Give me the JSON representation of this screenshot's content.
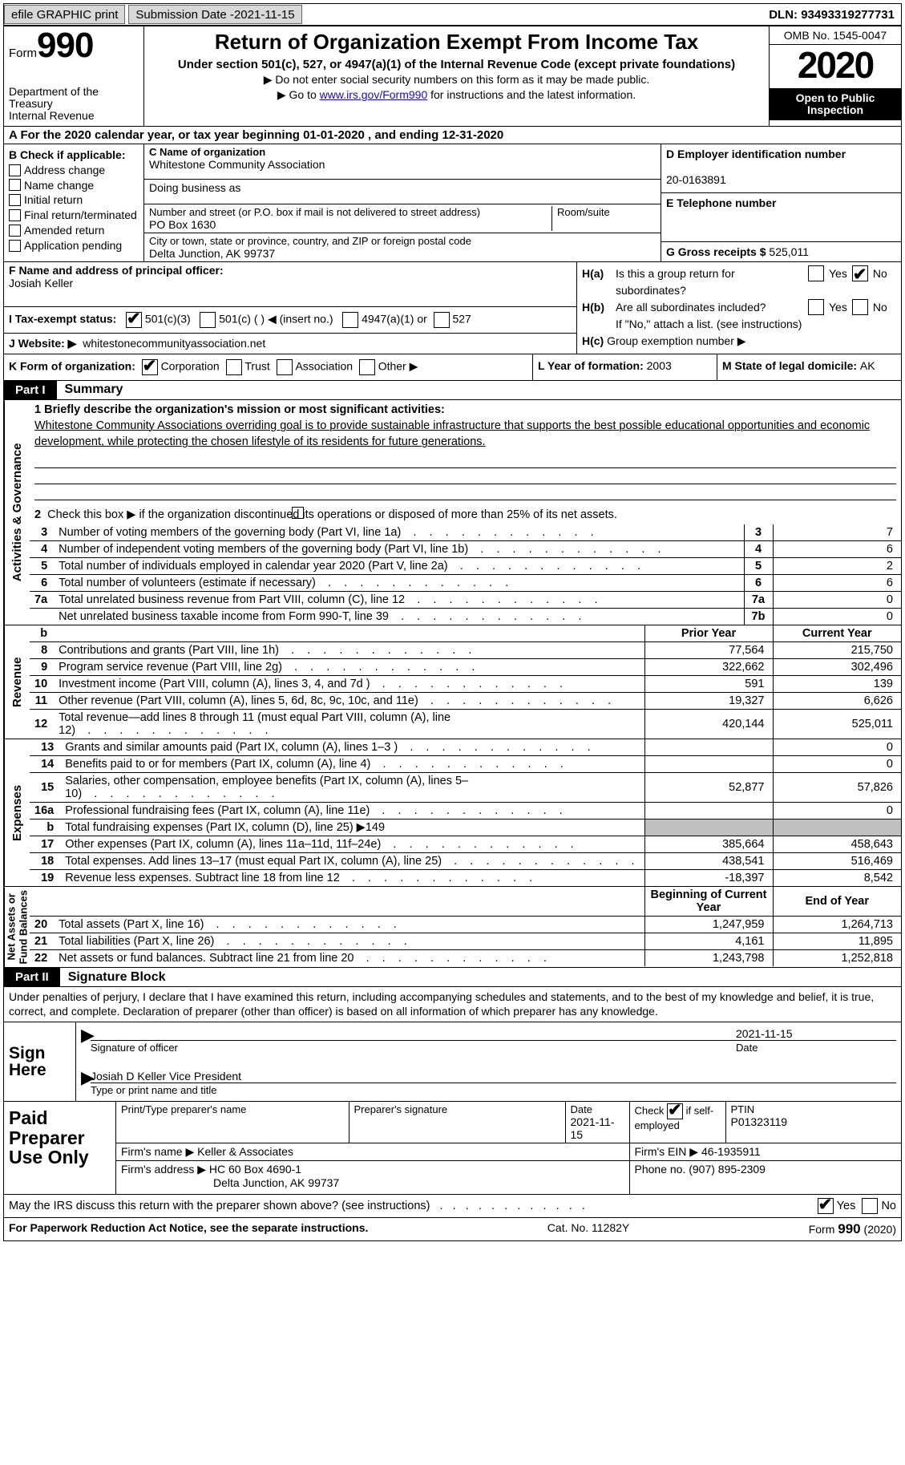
{
  "topbar": {
    "efile": "efile GRAPHIC print",
    "submission_prefix": "Submission Date - ",
    "submission_date": "2021-11-15",
    "dln_prefix": "DLN: ",
    "dln": "93493319277731"
  },
  "header": {
    "form_label": "Form",
    "form_num": "990",
    "dept": "Department of the Treasury\nInternal Revenue",
    "title": "Return of Organization Exempt From Income Tax",
    "sub": "Under section 501(c), 527, or 4947(a)(1) of the Internal Revenue Code (except private foundations)",
    "line1_prefix": "▶ Do not enter social security numbers on this form as it may be made public.",
    "line2_prefix": "▶ Go to ",
    "line2_link": "www.irs.gov/Form990",
    "line2_suffix": " for instructions and the latest information.",
    "omb": "OMB No. 1545-0047",
    "year": "2020",
    "open": "Open to Public Inspection"
  },
  "lineA": {
    "prefix": "A For the 2020 calendar year, or tax year beginning ",
    "begin": "01-01-2020",
    "mid": "   , and ending ",
    "end": "12-31-2020"
  },
  "boxB": {
    "label": "B Check if applicable:",
    "opts": [
      "Address change",
      "Name change",
      "Initial return",
      "Final return/terminated",
      "Amended return",
      "Application pending"
    ]
  },
  "boxC": {
    "label": "C Name of organization",
    "org_name": "Whitestone Community Association",
    "dba": "Doing business as",
    "addr_label": "Number and street (or P.O. box if mail is not delivered to street address)",
    "suite_label": "Room/suite",
    "addr": "PO Box 1630",
    "city_label": "City or town, state or province, country, and ZIP or foreign postal code",
    "city": "Delta Junction, AK  99737"
  },
  "boxD": {
    "label": "D Employer identification number",
    "ein": "20-0163891"
  },
  "boxE": {
    "label": "E Telephone number"
  },
  "boxG": {
    "prefix": "G Gross receipts $ ",
    "val": "525,011"
  },
  "boxF": {
    "label": "F  Name and address of principal officer:",
    "name": "Josiah Keller"
  },
  "boxH": {
    "a_q": "Is this a group return for subordinates?",
    "b_q": "Are all subordinates included?",
    "a_pre": "H(a)",
    "b_pre": "H(b)",
    "c_pre": "H(c)",
    "note": "If \"No,\" attach a list. (see instructions)",
    "c_label": "Group exemption number ▶",
    "yes": "Yes",
    "no": "No",
    "a_checked_no": true
  },
  "boxI": {
    "lbl": "I   Tax-exempt status:",
    "o1": "501(c)(3)",
    "o2": "501(c) (   ) ◀ (insert no.)",
    "o3": "4947(a)(1) or",
    "o4": "527",
    "checked": "501(c)(3)"
  },
  "boxJ": {
    "lbl": "J   Website: ▶",
    "val": "whitestonecommunityassociation.net"
  },
  "boxK": {
    "lbl": "K Form of organization:",
    "opts": [
      "Corporation",
      "Trust",
      "Association",
      "Other ▶"
    ],
    "checked": "Corporation"
  },
  "boxL": {
    "pre": "L Year of formation: ",
    "val": "2003"
  },
  "boxM": {
    "pre": "M State of legal domicile: ",
    "val": "AK"
  },
  "parts": {
    "p1": "Part I",
    "p1t": "Summary",
    "p2": "Part II",
    "p2t": "Signature Block"
  },
  "summary": {
    "q1": "1  Briefly describe the organization's mission or most significant activities:",
    "mission": "Whitestone Community Associations overriding goal is to provide sustainable infrastructure that supports the best possible educational opportunities and economic development, while protecting the chosen lifestyle of its residents for future generations.",
    "q2": "Check this box ▶        if the organization discontinued its operations or disposed of more than 25% of its net assets.",
    "rows_numbox": [
      {
        "n": "3",
        "desc": "Number of voting members of the governing body (Part VI, line 1a)",
        "box": "3",
        "val": "7"
      },
      {
        "n": "4",
        "desc": "Number of independent voting members of the governing body (Part VI, line 1b)",
        "box": "4",
        "val": "6"
      },
      {
        "n": "5",
        "desc": "Total number of individuals employed in calendar year 2020 (Part V, line 2a)",
        "box": "5",
        "val": "2"
      },
      {
        "n": "6",
        "desc": "Total number of volunteers (estimate if necessary)",
        "box": "6",
        "val": "6"
      },
      {
        "n": "7a",
        "desc": "Total unrelated business revenue from Part VIII, column (C), line 12",
        "box": "7a",
        "val": "0"
      },
      {
        "n": "",
        "desc": "Net unrelated business taxable income from Form 990-T, line 39",
        "box": "7b",
        "val": "0"
      }
    ],
    "col_prior": "Prior Year",
    "col_current": "Current Year",
    "col_boy": "Beginning of Current Year",
    "col_eoy": "End of Year",
    "revenue": [
      {
        "n": "8",
        "desc": "Contributions and grants (Part VIII, line 1h)",
        "p": "77,564",
        "c": "215,750"
      },
      {
        "n": "9",
        "desc": "Program service revenue (Part VIII, line 2g)",
        "p": "322,662",
        "c": "302,496"
      },
      {
        "n": "10",
        "desc": "Investment income (Part VIII, column (A), lines 3, 4, and 7d )",
        "p": "591",
        "c": "139"
      },
      {
        "n": "11",
        "desc": "Other revenue (Part VIII, column (A), lines 5, 6d, 8c, 9c, 10c, and 11e)",
        "p": "19,327",
        "c": "6,626"
      },
      {
        "n": "12",
        "desc": "Total revenue—add lines 8 through 11 (must equal Part VIII, column (A), line 12)",
        "p": "420,144",
        "c": "525,011"
      }
    ],
    "expenses": [
      {
        "n": "13",
        "desc": "Grants and similar amounts paid (Part IX, column (A), lines 1–3 )",
        "p": "",
        "c": "0",
        "shade_p": false
      },
      {
        "n": "14",
        "desc": "Benefits paid to or for members (Part IX, column (A), line 4)",
        "p": "",
        "c": "0",
        "shade_p": false
      },
      {
        "n": "15",
        "desc": "Salaries, other compensation, employee benefits (Part IX, column (A), lines 5–10)",
        "p": "52,877",
        "c": "57,826",
        "shade_p": false
      },
      {
        "n": "16a",
        "desc": "Professional fundraising fees (Part IX, column (A), line 11e)",
        "p": "",
        "c": "0",
        "shade_p": false
      },
      {
        "n": "b",
        "desc": "Total fundraising expenses (Part IX, column (D), line 25) ▶149",
        "p": "",
        "c": "",
        "shade_p": true,
        "shade_c": true
      },
      {
        "n": "17",
        "desc": "Other expenses (Part IX, column (A), lines 11a–11d, 11f–24e)",
        "p": "385,664",
        "c": "458,643",
        "shade_p": false
      },
      {
        "n": "18",
        "desc": "Total expenses. Add lines 13–17 (must equal Part IX, column (A), line 25)",
        "p": "438,541",
        "c": "516,469",
        "shade_p": false
      },
      {
        "n": "19",
        "desc": "Revenue less expenses. Subtract line 18 from line 12",
        "p": "-18,397",
        "c": "8,542",
        "shade_p": false
      }
    ],
    "netassets": [
      {
        "n": "20",
        "desc": "Total assets (Part X, line 16)",
        "p": "1,247,959",
        "c": "1,264,713"
      },
      {
        "n": "21",
        "desc": "Total liabilities (Part X, line 26)",
        "p": "4,161",
        "c": "11,895"
      },
      {
        "n": "22",
        "desc": "Net assets or fund balances. Subtract line 21 from line 20",
        "p": "1,243,798",
        "c": "1,252,818"
      }
    ],
    "vtabs": {
      "ag": "Activities & Governance",
      "rev": "Revenue",
      "exp": "Expenses",
      "na": "Net Assets or\nFund Balances"
    }
  },
  "sig": {
    "decl": "Under penalties of perjury, I declare that I have examined this return, including accompanying schedules and statements, and to the best of my knowledge and belief, it is true, correct, and complete. Declaration of preparer (other than officer) is based on all information of which preparer has any knowledge.",
    "sign_here": "Sign Here",
    "sig_officer": "Signature of officer",
    "date_lbl": "Date",
    "date_val": "2021-11-15",
    "name_title": "Josiah D Keller  Vice President",
    "type_lbl": "Type or print name and title"
  },
  "prep": {
    "label": "Paid Preparer Use Only",
    "h_name": "Print/Type preparer's name",
    "h_sig": "Preparer's signature",
    "h_date": "Date",
    "h_check": "Check         if self-employed",
    "h_ptin": "PTIN",
    "date": "2021-11-15",
    "ptin": "P01323119",
    "firm_pre": "Firm's name    ▶ ",
    "firm_name": "Keller & Associates",
    "ein_pre": "Firm's EIN ▶ ",
    "ein": "46-1935911",
    "addr_pre": "Firm's address ▶ ",
    "addr1": "HC 60 Box 4690-1",
    "addr2": "Delta Junction, AK  99737",
    "phone_pre": "Phone no. ",
    "phone": "(907) 895-2309",
    "check_self": true
  },
  "may": {
    "q": "May the IRS discuss this return with the preparer shown above? (see instructions)",
    "yes": "Yes",
    "no": "No",
    "checked_yes": true
  },
  "foot": {
    "l": "For Paperwork Reduction Act Notice, see the separate instructions.",
    "m": "Cat. No. 11282Y",
    "r_pre": "Form ",
    "r_num": "990",
    "r_suf": " (2020)"
  }
}
